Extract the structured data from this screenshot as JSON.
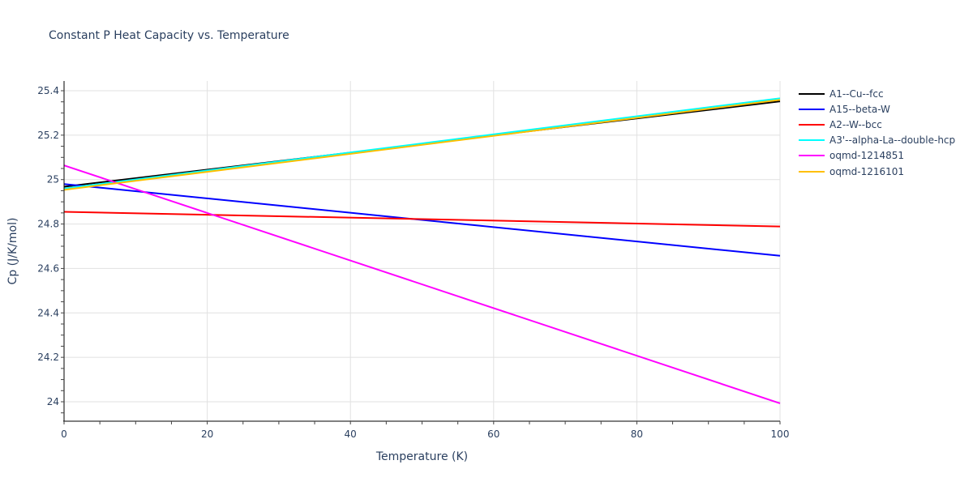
{
  "chart_data": {
    "type": "line",
    "title": "Constant P Heat Capacity vs. Temperature",
    "xlabel": "Temperature (K)",
    "ylabel": "Cp (J/K/mol)",
    "xlim": [
      0,
      100
    ],
    "ylim": [
      23.93,
      25.45
    ],
    "x_ticks": [
      0,
      20,
      40,
      60,
      80,
      100
    ],
    "y_ticks": [
      24,
      24.2,
      24.4,
      24.6,
      24.8,
      25,
      25.2,
      25.4
    ],
    "y_tick_labels": [
      "24",
      "24.2",
      "24.4",
      "24.6",
      "24.8",
      "25",
      "25.2",
      "25.4"
    ],
    "grid": true,
    "legend_position": "right",
    "x": [
      0,
      100
    ],
    "series": [
      {
        "name": "A1--Cu--fcc",
        "color": "#000000",
        "values": [
          24.968,
          25.352
        ]
      },
      {
        "name": "A15--beta-W",
        "color": "#0000ff",
        "values": [
          24.98,
          24.657
        ]
      },
      {
        "name": "A2--W--bcc",
        "color": "#ff0000",
        "values": [
          24.855,
          24.789
        ]
      },
      {
        "name": "A3'--alpha-La--double-hcp",
        "color": "#00ffff",
        "values": [
          24.96,
          25.366
        ]
      },
      {
        "name": "oqmd-1214851",
        "color": "#ff00ff",
        "values": [
          25.064,
          23.993
        ]
      },
      {
        "name": "oqmd-1216101",
        "color": "#ffbf00",
        "values": [
          24.954,
          25.359
        ]
      }
    ]
  }
}
